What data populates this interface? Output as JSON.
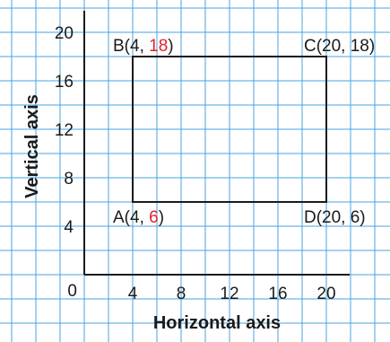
{
  "colors": {
    "grid": "#4aa3df",
    "axis": "#1a1a1a",
    "rectangle": "#1a1a1a",
    "highlight": "#e0242b",
    "background": "#ffffff"
  },
  "chart_data": {
    "type": "scatter",
    "title": "",
    "xlabel": "Horizontal axis",
    "ylabel": "Vertical axis",
    "xlim": [
      0,
      20
    ],
    "ylim": [
      0,
      20
    ],
    "grid": true,
    "origin_label": "0",
    "x_ticks": [
      {
        "value": 4,
        "label": "4"
      },
      {
        "value": 8,
        "label": "8"
      },
      {
        "value": 12,
        "label": "12"
      },
      {
        "value": 16,
        "label": "16"
      },
      {
        "value": 20,
        "label": "20"
      }
    ],
    "y_ticks": [
      {
        "value": 4,
        "label": "4"
      },
      {
        "value": 8,
        "label": "8"
      },
      {
        "value": 12,
        "label": "12"
      },
      {
        "value": 16,
        "label": "16"
      },
      {
        "value": 20,
        "label": "20"
      }
    ],
    "shape": "rectangle",
    "points": [
      {
        "name": "A",
        "x": 4,
        "y": 6,
        "prefix": "A(4, ",
        "highlight": "6",
        "suffix": ")",
        "anchor": "bottom-left"
      },
      {
        "name": "B",
        "x": 4,
        "y": 18,
        "prefix": "B(4, ",
        "highlight": "18",
        "suffix": ")",
        "anchor": "top-left"
      },
      {
        "name": "C",
        "x": 20,
        "y": 18,
        "prefix": "C(20, 18)",
        "highlight": "",
        "suffix": "",
        "anchor": "top-right"
      },
      {
        "name": "D",
        "x": 20,
        "y": 6,
        "prefix": "D(20, 6)",
        "highlight": "",
        "suffix": "",
        "anchor": "bottom-right"
      }
    ]
  }
}
